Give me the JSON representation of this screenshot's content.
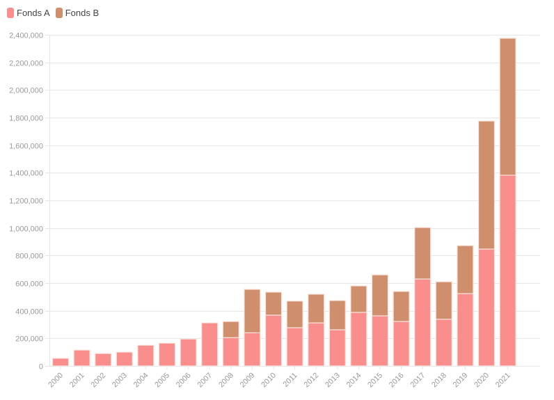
{
  "legend": [
    {
      "label": "Fonds A",
      "color": "#f98e8c"
    },
    {
      "label": "Fonds B",
      "color": "#cf8e6c"
    }
  ],
  "chart_data": {
    "type": "bar",
    "stacked": true,
    "title": "",
    "xlabel": "",
    "ylabel": "",
    "ylim": [
      0,
      2400000
    ],
    "yticks": [
      0,
      200000,
      400000,
      600000,
      800000,
      1000000,
      1200000,
      1400000,
      1600000,
      1800000,
      2000000,
      2200000,
      2400000
    ],
    "ytick_labels": [
      "0",
      "200,000",
      "400,000",
      "600,000",
      "800,000",
      "1,000,000",
      "1,200,000",
      "1,400,000",
      "1,600,000",
      "1,800,000",
      "2,000,000",
      "2,200,000",
      "2,400,000"
    ],
    "grid": true,
    "legend_position": "top-left",
    "categories": [
      "2000",
      "2001",
      "2002",
      "2003",
      "2004",
      "2005",
      "2006",
      "2007",
      "2008",
      "2009",
      "2010",
      "2011",
      "2012",
      "2013",
      "2014",
      "2015",
      "2016",
      "2017",
      "2018",
      "2019",
      "2020",
      "2021"
    ],
    "series": [
      {
        "name": "Fonds A",
        "color": "#f98e8c",
        "values": [
          55000,
          115000,
          90000,
          100000,
          150000,
          165000,
          195000,
          312000,
          205000,
          240000,
          368000,
          277000,
          312000,
          262000,
          388000,
          363000,
          322000,
          630000,
          338000,
          524000,
          847000,
          1382000
        ]
      },
      {
        "name": "Fonds B",
        "color": "#cf8e6c",
        "values": [
          0,
          0,
          0,
          0,
          0,
          0,
          0,
          0,
          117000,
          315000,
          167000,
          193000,
          208000,
          212000,
          192000,
          297000,
          218000,
          373000,
          272000,
          348000,
          928000,
          993000
        ]
      }
    ]
  }
}
